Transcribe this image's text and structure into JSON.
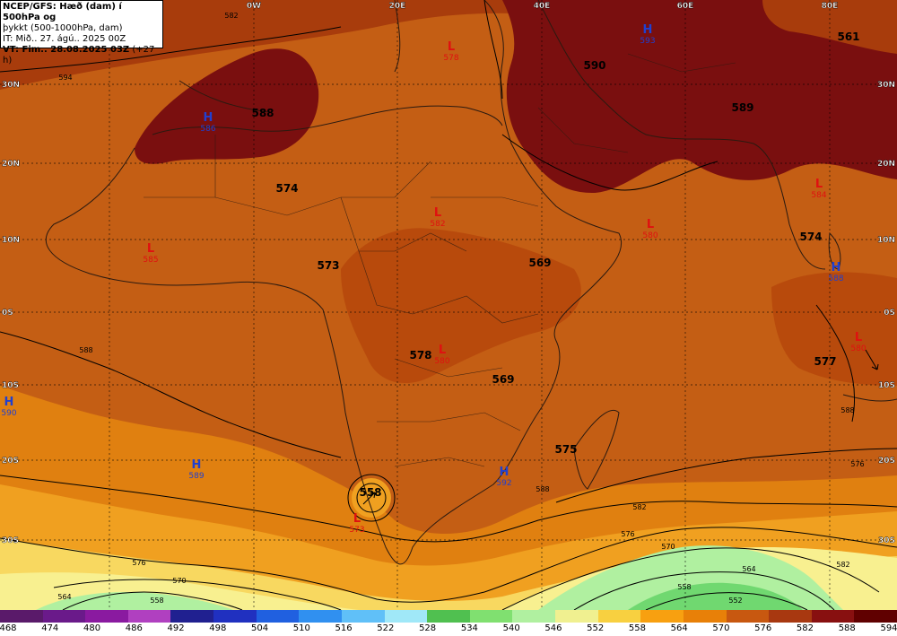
{
  "header": {
    "line1": "NCEP/GFS: Hæð (dam) í 500hPa og",
    "line2": "þykkt (500-1000hPa, dam)",
    "line3": "IT: Mið.. 27. ágú.. 2025 00Z",
    "line4_vt": "VT: Fim.. 28.08.2025 03Z",
    "line4_offset": "(+27 h)"
  },
  "longitude_labels": [
    "0W",
    "20E",
    "40E",
    "60E",
    "80E"
  ],
  "latitude_labels_left": [
    "30N",
    "20N",
    "10N",
    "0S",
    "10S",
    "20S",
    "30S"
  ],
  "latitude_labels_right": [
    "30N",
    "20N",
    "10N",
    "0S",
    "10S",
    "20S",
    "30S"
  ],
  "geopotential_labels": [
    "588",
    "574",
    "573",
    "569",
    "578",
    "569",
    "575",
    "558",
    "590",
    "589",
    "574",
    "577",
    "561"
  ],
  "pressure_centers": [
    {
      "type": "H",
      "value": "593",
      "color": "#2040d0"
    },
    {
      "type": "L",
      "value": "578",
      "color": "#e01010"
    },
    {
      "type": "H",
      "value": "586",
      "color": "#2040d0"
    },
    {
      "type": "L",
      "value": "585",
      "color": "#e01010"
    },
    {
      "type": "L",
      "value": "582",
      "color": "#e01010"
    },
    {
      "type": "L",
      "value": "580",
      "color": "#e01010"
    },
    {
      "type": "L",
      "value": "584",
      "color": "#e01010"
    },
    {
      "type": "H",
      "value": "590",
      "color": "#2040d0"
    },
    {
      "type": "H",
      "value": "589",
      "color": "#2040d0"
    },
    {
      "type": "L",
      "value": "573",
      "color": "#e01010"
    },
    {
      "type": "H",
      "value": "592",
      "color": "#2040d0"
    },
    {
      "type": "L",
      "value": "580",
      "color": "#e01010"
    },
    {
      "type": "H",
      "value": "588",
      "color": "#2040d0"
    },
    {
      "type": "L",
      "value": "580",
      "color": "#e01010"
    }
  ],
  "contour_labels": [
    "594",
    "582",
    "588",
    "576",
    "570",
    "564",
    "558",
    "582",
    "576",
    "570",
    "564",
    "558",
    "552",
    "588",
    "582",
    "576",
    "588"
  ],
  "colorbar": {
    "ticks": [
      "468",
      "474",
      "480",
      "486",
      "492",
      "498",
      "504",
      "510",
      "516",
      "522",
      "528",
      "534",
      "540",
      "546",
      "552",
      "558",
      "564",
      "570",
      "576",
      "582",
      "588",
      "594"
    ],
    "colors": [
      "#5a1a6a",
      "#6a1a8a",
      "#8a1aa0",
      "#b040c0",
      "#202090",
      "#2030c0",
      "#2060e0",
      "#3090f0",
      "#60c0f8",
      "#a0e8f8",
      "#50c050",
      "#80e070",
      "#b0f0a0",
      "#f0f090",
      "#f8d040",
      "#f8a010",
      "#e88008",
      "#c85810",
      "#a83810",
      "#881010",
      "#600000",
      "#000000"
    ]
  },
  "colors": {
    "deep_red": "#7a0f0f",
    "dark": "#8b2a0a",
    "brown_orange": "#b84a0c",
    "orange": "#d2691e",
    "light_orange": "#e8820c",
    "amber": "#f0a020",
    "yellow": "#f8d860",
    "pale_yellow": "#f8f090",
    "light_green": "#b0f0a0",
    "green": "#70d870"
  }
}
